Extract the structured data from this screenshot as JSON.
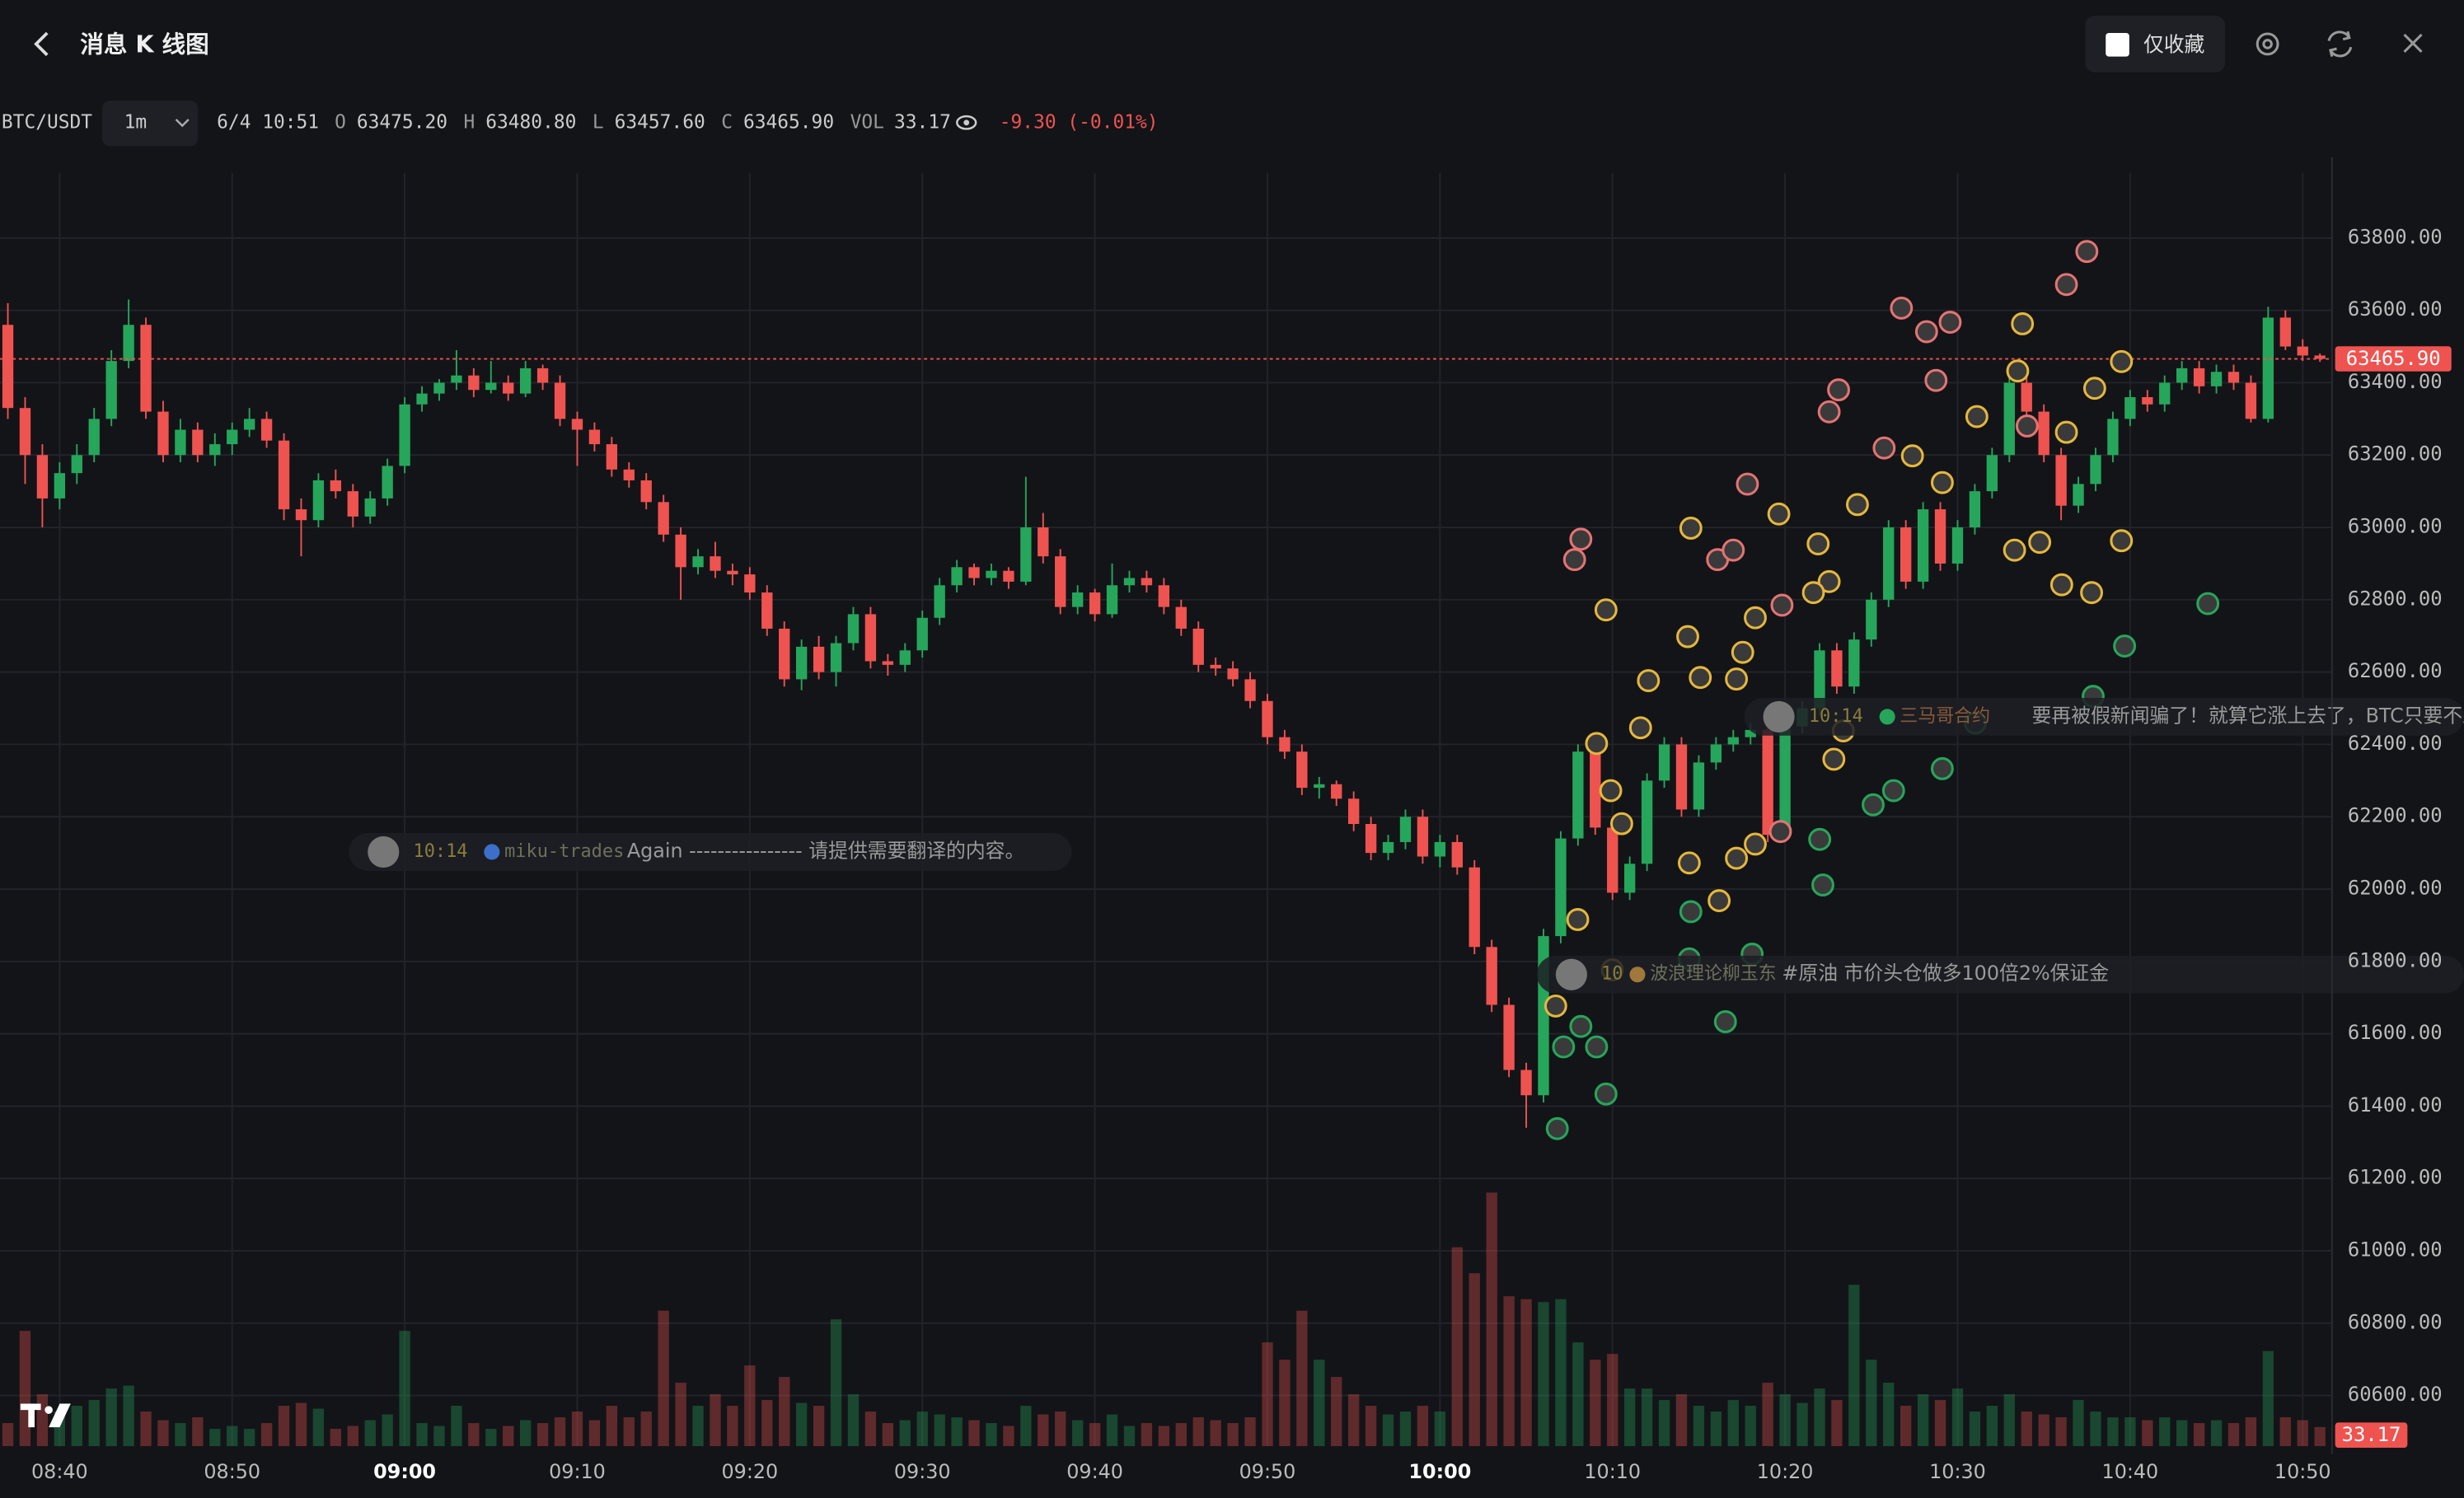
{
  "header": {
    "title": "消息 K 线图",
    "favorites_only": "仅收藏"
  },
  "chart_data": {
    "type": "candlestick",
    "legend": {
      "symbol": "BTC/USDT",
      "interval": "1m",
      "time": "6/4 10:51",
      "open_label": "O",
      "open": "63475.20",
      "high_label": "H",
      "high": "63480.80",
      "low_label": "L",
      "low": "63457.60",
      "close_label": "C",
      "close": "63465.90",
      "volume_label": "VOL",
      "volume": "33.17",
      "change": "-9.30 (-0.01%)"
    },
    "columns": [
      "time",
      "open",
      "high",
      "low",
      "close",
      "volume"
    ],
    "candles": [
      [
        "08:37",
        63560,
        63620,
        63300,
        63330,
        40
      ],
      [
        "08:38",
        63330,
        63360,
        63120,
        63200,
        200
      ],
      [
        "08:39",
        63200,
        63230,
        63000,
        63080,
        90
      ],
      [
        "08:40",
        63080,
        63180,
        63050,
        63150,
        60
      ],
      [
        "08:41",
        63150,
        63230,
        63120,
        63200,
        70
      ],
      [
        "08:42",
        63200,
        63330,
        63180,
        63300,
        80
      ],
      [
        "08:43",
        63300,
        63490,
        63280,
        63460,
        100
      ],
      [
        "08:44",
        63460,
        63630,
        63440,
        63560,
        105
      ],
      [
        "08:45",
        63560,
        63580,
        63300,
        63320,
        60
      ],
      [
        "08:46",
        63320,
        63350,
        63180,
        63200,
        45
      ],
      [
        "08:47",
        63200,
        63300,
        63180,
        63270,
        40
      ],
      [
        "08:48",
        63270,
        63290,
        63180,
        63200,
        50
      ],
      [
        "08:49",
        63200,
        63260,
        63170,
        63230,
        30
      ],
      [
        "08:50",
        63230,
        63290,
        63200,
        63270,
        35
      ],
      [
        "08:51",
        63270,
        63330,
        63250,
        63300,
        30
      ],
      [
        "08:52",
        63300,
        63320,
        63220,
        63240,
        40
      ],
      [
        "08:53",
        63240,
        63260,
        63020,
        63050,
        70
      ],
      [
        "08:54",
        63050,
        63080,
        62920,
        63020,
        75
      ],
      [
        "08:55",
        63020,
        63150,
        63000,
        63130,
        65
      ],
      [
        "08:56",
        63130,
        63160,
        63080,
        63100,
        30
      ],
      [
        "08:57",
        63100,
        63120,
        63000,
        63030,
        35
      ],
      [
        "08:58",
        63030,
        63100,
        63010,
        63080,
        45
      ],
      [
        "08:59",
        63080,
        63190,
        63060,
        63170,
        55
      ],
      [
        "09:00",
        63170,
        63360,
        63150,
        63340,
        200
      ],
      [
        "09:01",
        63340,
        63390,
        63320,
        63370,
        40
      ],
      [
        "09:02",
        63370,
        63410,
        63350,
        63400,
        35
      ],
      [
        "09:03",
        63400,
        63490,
        63380,
        63420,
        70
      ],
      [
        "09:04",
        63420,
        63440,
        63360,
        63380,
        40
      ],
      [
        "09:05",
        63380,
        63460,
        63370,
        63400,
        30
      ],
      [
        "09:06",
        63400,
        63420,
        63350,
        63370,
        35
      ],
      [
        "09:07",
        63370,
        63460,
        63360,
        63440,
        45
      ],
      [
        "09:08",
        63440,
        63450,
        63380,
        63400,
        40
      ],
      [
        "09:09",
        63400,
        63420,
        63280,
        63300,
        50
      ],
      [
        "09:10",
        63300,
        63320,
        63170,
        63270,
        60
      ],
      [
        "09:11",
        63270,
        63290,
        63210,
        63230,
        45
      ],
      [
        "09:12",
        63230,
        63250,
        63140,
        63160,
        70
      ],
      [
        "09:13",
        63160,
        63180,
        63110,
        63130,
        50
      ],
      [
        "09:14",
        63130,
        63150,
        63050,
        63070,
        60
      ],
      [
        "09:15",
        63070,
        63090,
        62960,
        62980,
        235
      ],
      [
        "09:16",
        62980,
        63000,
        62800,
        62890,
        110
      ],
      [
        "09:17",
        62890,
        62940,
        62870,
        62920,
        70
      ],
      [
        "09:18",
        62920,
        62960,
        62860,
        62880,
        90
      ],
      [
        "09:19",
        62880,
        62900,
        62840,
        62870,
        70
      ],
      [
        "09:20",
        62870,
        62890,
        62800,
        62820,
        140
      ],
      [
        "09:21",
        62820,
        62840,
        62700,
        62720,
        80
      ],
      [
        "09:22",
        62720,
        62740,
        62560,
        62580,
        120
      ],
      [
        "09:23",
        62580,
        62690,
        62550,
        62670,
        75
      ],
      [
        "09:24",
        62670,
        62700,
        62580,
        62600,
        70
      ],
      [
        "09:25",
        62600,
        62700,
        62560,
        62680,
        220
      ],
      [
        "09:26",
        62680,
        62780,
        62660,
        62760,
        90
      ],
      [
        "09:27",
        62760,
        62780,
        62610,
        62630,
        60
      ],
      [
        "09:28",
        62630,
        62650,
        62590,
        62620,
        40
      ],
      [
        "09:29",
        62620,
        62680,
        62600,
        62660,
        45
      ],
      [
        "09:30",
        62660,
        62770,
        62640,
        62750,
        60
      ],
      [
        "09:31",
        62750,
        62860,
        62730,
        62840,
        55
      ],
      [
        "09:32",
        62840,
        62910,
        62820,
        62890,
        50
      ],
      [
        "09:33",
        62890,
        62900,
        62840,
        62860,
        45
      ],
      [
        "09:34",
        62860,
        62900,
        62840,
        62880,
        40
      ],
      [
        "09:35",
        62880,
        62890,
        62830,
        62850,
        35
      ],
      [
        "09:36",
        62850,
        63140,
        62840,
        63000,
        70
      ],
      [
        "09:37",
        63000,
        63040,
        62900,
        62920,
        55
      ],
      [
        "09:38",
        62920,
        62940,
        62760,
        62780,
        60
      ],
      [
        "09:39",
        62780,
        62840,
        62760,
        62820,
        45
      ],
      [
        "09:40",
        62820,
        62830,
        62740,
        62760,
        40
      ],
      [
        "09:41",
        62760,
        62900,
        62750,
        62840,
        55
      ],
      [
        "09:42",
        62840,
        62880,
        62820,
        62860,
        35
      ],
      [
        "09:43",
        62860,
        62880,
        62820,
        62840,
        40
      ],
      [
        "09:44",
        62840,
        62860,
        62760,
        62780,
        35
      ],
      [
        "09:45",
        62780,
        62800,
        62700,
        62720,
        40
      ],
      [
        "09:46",
        62720,
        62740,
        62600,
        62620,
        50
      ],
      [
        "09:47",
        62620,
        62640,
        62590,
        62610,
        45
      ],
      [
        "09:48",
        62610,
        62630,
        62560,
        62580,
        40
      ],
      [
        "09:49",
        62580,
        62600,
        62500,
        62520,
        50
      ],
      [
        "09:50",
        62520,
        62540,
        62400,
        62420,
        180
      ],
      [
        "09:51",
        62420,
        62440,
        62360,
        62380,
        150
      ],
      [
        "09:52",
        62380,
        62400,
        62260,
        62280,
        235
      ],
      [
        "09:53",
        62280,
        62310,
        62250,
        62290,
        150
      ],
      [
        "09:54",
        62290,
        62300,
        62230,
        62250,
        120
      ],
      [
        "09:55",
        62250,
        62270,
        62160,
        62180,
        90
      ],
      [
        "09:56",
        62180,
        62200,
        62080,
        62100,
        70
      ],
      [
        "09:57",
        62100,
        62150,
        62080,
        62130,
        55
      ],
      [
        "09:58",
        62130,
        62220,
        62110,
        62200,
        60
      ],
      [
        "09:59",
        62200,
        62220,
        62070,
        62090,
        70
      ],
      [
        "10:00",
        62090,
        62150,
        62060,
        62130,
        60
      ],
      [
        "10:01",
        62130,
        62150,
        62040,
        62060,
        345
      ],
      [
        "10:02",
        62060,
        62080,
        61820,
        61840,
        300
      ],
      [
        "10:03",
        61840,
        61860,
        61660,
        61680,
        440
      ],
      [
        "10:04",
        61680,
        61700,
        61480,
        61500,
        260
      ],
      [
        "10:05",
        61500,
        61520,
        61340,
        61430,
        255
      ],
      [
        "10:06",
        61430,
        61890,
        61410,
        61870,
        250
      ],
      [
        "10:07",
        61870,
        62160,
        61850,
        62140,
        255
      ],
      [
        "10:08",
        62140,
        62400,
        62120,
        62380,
        180
      ],
      [
        "10:09",
        62380,
        62400,
        62150,
        62170,
        150
      ],
      [
        "10:10",
        62170,
        62190,
        61970,
        61990,
        160
      ],
      [
        "10:11",
        61990,
        62090,
        61970,
        62070,
        100
      ],
      [
        "10:12",
        62070,
        62320,
        62050,
        62300,
        100
      ],
      [
        "10:13",
        62300,
        62420,
        62280,
        62400,
        80
      ],
      [
        "10:14",
        62400,
        62420,
        62200,
        62220,
        90
      ],
      [
        "10:15",
        62220,
        62370,
        62200,
        62350,
        70
      ],
      [
        "10:16",
        62350,
        62420,
        62330,
        62400,
        60
      ],
      [
        "10:17",
        62400,
        62440,
        62380,
        62420,
        80
      ],
      [
        "10:18",
        62420,
        62460,
        62400,
        62440,
        70
      ],
      [
        "10:19",
        62440,
        62460,
        62130,
        62150,
        110
      ],
      [
        "10:20",
        62150,
        62470,
        62130,
        62450,
        90
      ],
      [
        "10:21",
        62450,
        62520,
        62430,
        62500,
        75
      ],
      [
        "10:22",
        62500,
        62680,
        62480,
        62660,
        100
      ],
      [
        "10:23",
        62660,
        62680,
        62540,
        62560,
        80
      ],
      [
        "10:24",
        62560,
        62710,
        62540,
        62690,
        280
      ],
      [
        "10:25",
        62690,
        62820,
        62670,
        62800,
        150
      ],
      [
        "10:26",
        62800,
        63020,
        62780,
        63000,
        110
      ],
      [
        "10:27",
        63000,
        63020,
        62830,
        62850,
        70
      ],
      [
        "10:28",
        62850,
        63070,
        62830,
        63050,
        90
      ],
      [
        "10:29",
        63050,
        63070,
        62880,
        62900,
        80
      ],
      [
        "10:30",
        62900,
        63020,
        62880,
        63000,
        100
      ],
      [
        "10:31",
        63000,
        63120,
        62980,
        63100,
        60
      ],
      [
        "10:32",
        63100,
        63220,
        63080,
        63200,
        70
      ],
      [
        "10:33",
        63200,
        63420,
        63180,
        63400,
        90
      ],
      [
        "10:34",
        63400,
        63420,
        63300,
        63320,
        60
      ],
      [
        "10:35",
        63320,
        63340,
        63180,
        63200,
        55
      ],
      [
        "10:36",
        63200,
        63220,
        63020,
        63060,
        50
      ],
      [
        "10:37",
        63060,
        63140,
        63040,
        63120,
        80
      ],
      [
        "10:38",
        63120,
        63220,
        63100,
        63200,
        60
      ],
      [
        "10:39",
        63200,
        63320,
        63180,
        63300,
        50
      ],
      [
        "10:40",
        63300,
        63380,
        63280,
        63360,
        50
      ],
      [
        "10:41",
        63360,
        63380,
        63320,
        63340,
        45
      ],
      [
        "10:42",
        63340,
        63420,
        63320,
        63400,
        50
      ],
      [
        "10:43",
        63400,
        63460,
        63380,
        63440,
        45
      ],
      [
        "10:44",
        63440,
        63460,
        63370,
        63390,
        40
      ],
      [
        "10:45",
        63390,
        63450,
        63370,
        63430,
        45
      ],
      [
        "10:46",
        63430,
        63450,
        63380,
        63400,
        40
      ],
      [
        "10:47",
        63400,
        63420,
        63290,
        63300,
        50
      ],
      [
        "10:48",
        63300,
        63610,
        63290,
        63580,
        165
      ],
      [
        "10:49",
        63580,
        63600,
        63490,
        63500,
        50
      ],
      [
        "10:50",
        63500,
        63520,
        63460,
        63475.2,
        45
      ],
      [
        "10:51",
        63475.2,
        63480.8,
        63457.6,
        63465.9,
        33.17
      ]
    ],
    "ylim": [
      60460,
      63980
    ],
    "yticks": [
      {
        "value": 60600,
        "label": "60600.00"
      },
      {
        "value": 60800,
        "label": "60800.00"
      },
      {
        "value": 61000,
        "label": "61000.00"
      },
      {
        "value": 61200,
        "label": "61200.00"
      },
      {
        "value": 61400,
        "label": "61400.00"
      },
      {
        "value": 61600,
        "label": "61600.00"
      },
      {
        "value": 61800,
        "label": "61800.00"
      },
      {
        "value": 62000,
        "label": "62000.00"
      },
      {
        "value": 62200,
        "label": "62200.00"
      },
      {
        "value": 62400,
        "label": "62400.00"
      },
      {
        "value": 62600,
        "label": "62600.00"
      },
      {
        "value": 62800,
        "label": "62800.00"
      },
      {
        "value": 63000,
        "label": "63000.00"
      },
      {
        "value": 63200,
        "label": "63200.00"
      },
      {
        "value": 63400,
        "label": "63400.00"
      },
      {
        "value": 63600,
        "label": "63600.00"
      },
      {
        "value": 63800,
        "label": "63800.00"
      }
    ],
    "volume_ylim": [
      0,
      1200
    ],
    "xticks": [
      "08:40",
      "08:50",
      "09:00",
      "09:10",
      "09:20",
      "09:30",
      "09:40",
      "09:50",
      "10:00",
      "10:10",
      "10:20",
      "10:30",
      "10:40",
      "10:50"
    ],
    "last_price_label": "63465.90",
    "up_color": "#26a65b",
    "down_color": "#ef5350",
    "grid": true,
    "annotations": [
      {
        "time": "10:14",
        "user": "miku-trades",
        "text": "Again ---------------- 请提供需要翻译的内容。"
      },
      {
        "time": "10:14",
        "user": "三马哥合约",
        "text": "要再被假新闻骗了！就算它涨上去了，BTC只要不跌到"
      },
      {
        "time": "10",
        "user": "波浪理论柳玉东",
        "text": "#原油 市价头仓做多100倍2%保证金"
      }
    ]
  }
}
